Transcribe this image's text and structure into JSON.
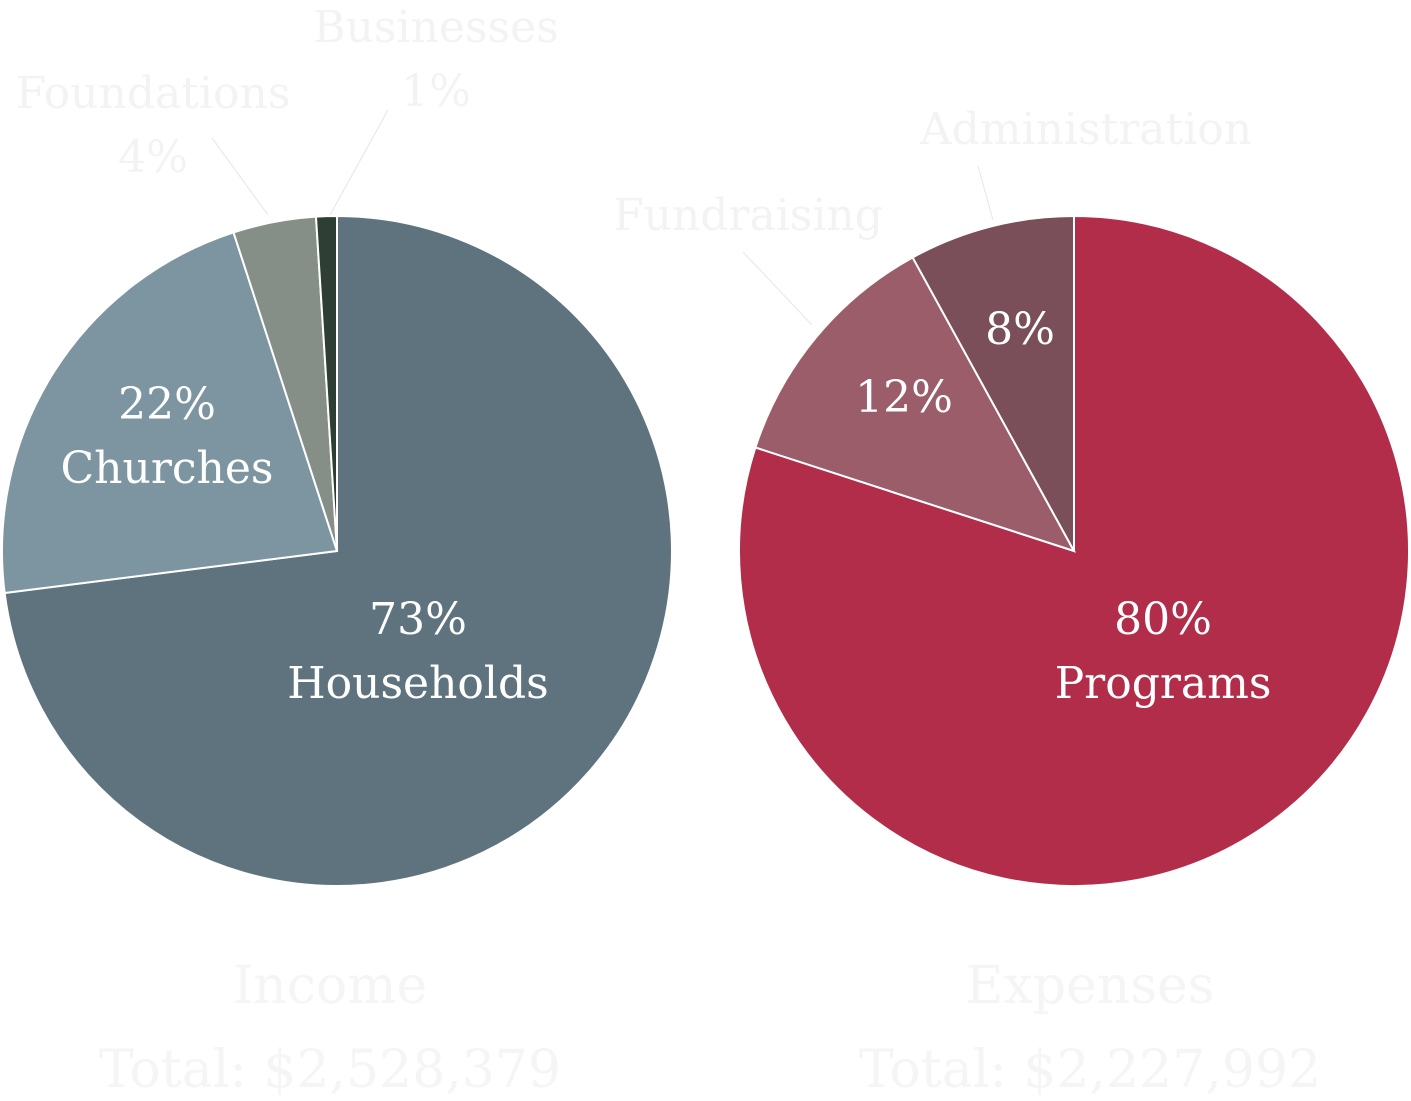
{
  "chart_data": [
    {
      "type": "pie",
      "title": "Income",
      "subtitle": "Total: $2,528,379",
      "start_angle_deg": 0,
      "direction": "clockwise",
      "slices": [
        {
          "label": "Households",
          "value": 73,
          "display": "73%",
          "color": "#5f737e",
          "label_position": "inside"
        },
        {
          "label": "Churches",
          "value": 22,
          "display": "22%",
          "color": "#7d95a1",
          "label_position": "inside"
        },
        {
          "label": "Foundations",
          "value": 4,
          "display": "4%",
          "color": "#858f87",
          "label_position": "outside"
        },
        {
          "label": "Businesses",
          "value": 1,
          "display": "1%",
          "color": "#2e3e34",
          "label_position": "outside"
        }
      ]
    },
    {
      "type": "pie",
      "title": "Expenses",
      "subtitle": "Total: $2,227,992",
      "start_angle_deg": 0,
      "direction": "clockwise",
      "slices": [
        {
          "label": "Programs",
          "value": 80,
          "display": "80%",
          "color": "#b22d4a",
          "label_position": "inside"
        },
        {
          "label": "Fundraising",
          "value": 12,
          "display": "12%",
          "color": "#9a5d69",
          "label_position": "inside",
          "name_position": "outside"
        },
        {
          "label": "Administration",
          "value": 8,
          "display": "8%",
          "color": "#7a4f59",
          "label_position": "inside",
          "name_position": "outside"
        }
      ]
    }
  ]
}
